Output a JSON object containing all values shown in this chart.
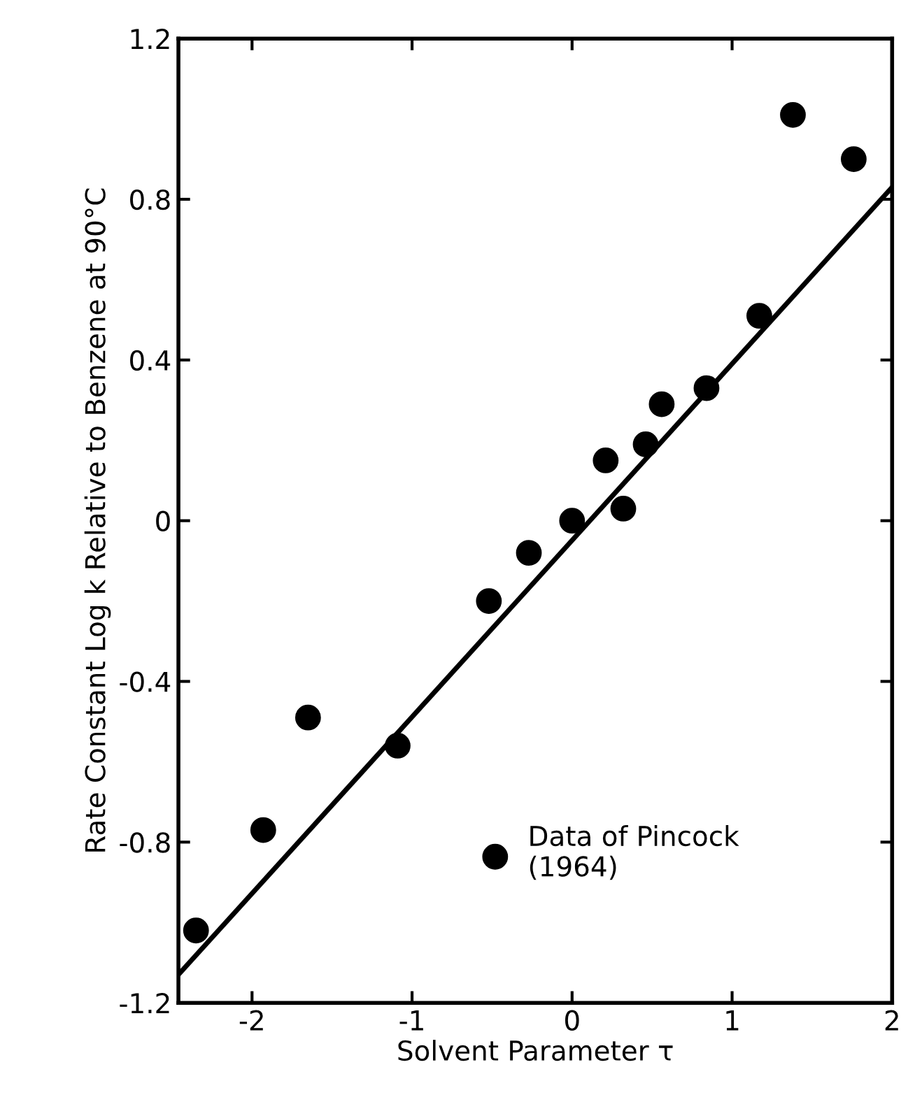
{
  "chart_data": {
    "type": "scatter",
    "xlabel": "Solvent Parameter τ",
    "ylabel": "Rate Constant Log k Relative to Benzene at 90°C",
    "xlim": [
      -2.46,
      2
    ],
    "ylim": [
      -1.2,
      1.2
    ],
    "xticks": [
      -2,
      -1,
      0,
      1,
      2
    ],
    "yticks": [
      -1.2,
      -0.8,
      -0.4,
      0,
      0.4,
      0.8,
      1.2
    ],
    "grid": false,
    "legend": "bottom right",
    "series": [
      {
        "name": "Data of Pincock\n(1964)",
        "color": "#000000",
        "marker": "circle",
        "x": [
          -2.35,
          -1.93,
          -1.65,
          -1.09,
          -0.52,
          -0.27,
          0,
          0.21,
          0.32,
          0.46,
          0.56,
          0.84,
          1.17,
          1.38,
          1.76
        ],
        "values": [
          -1.02,
          -0.77,
          -0.49,
          -0.56,
          -0.2,
          -0.08,
          0,
          0.15,
          0.03,
          0.19,
          0.29,
          0.33,
          0.51,
          1.01,
          0.9
        ]
      },
      {
        "type": "line",
        "color": "#000000",
        "line_style": "solid",
        "marker": "none",
        "x": [
          -2.46,
          2
        ],
        "values": [
          -1.13,
          0.83
        ]
      }
    ]
  }
}
